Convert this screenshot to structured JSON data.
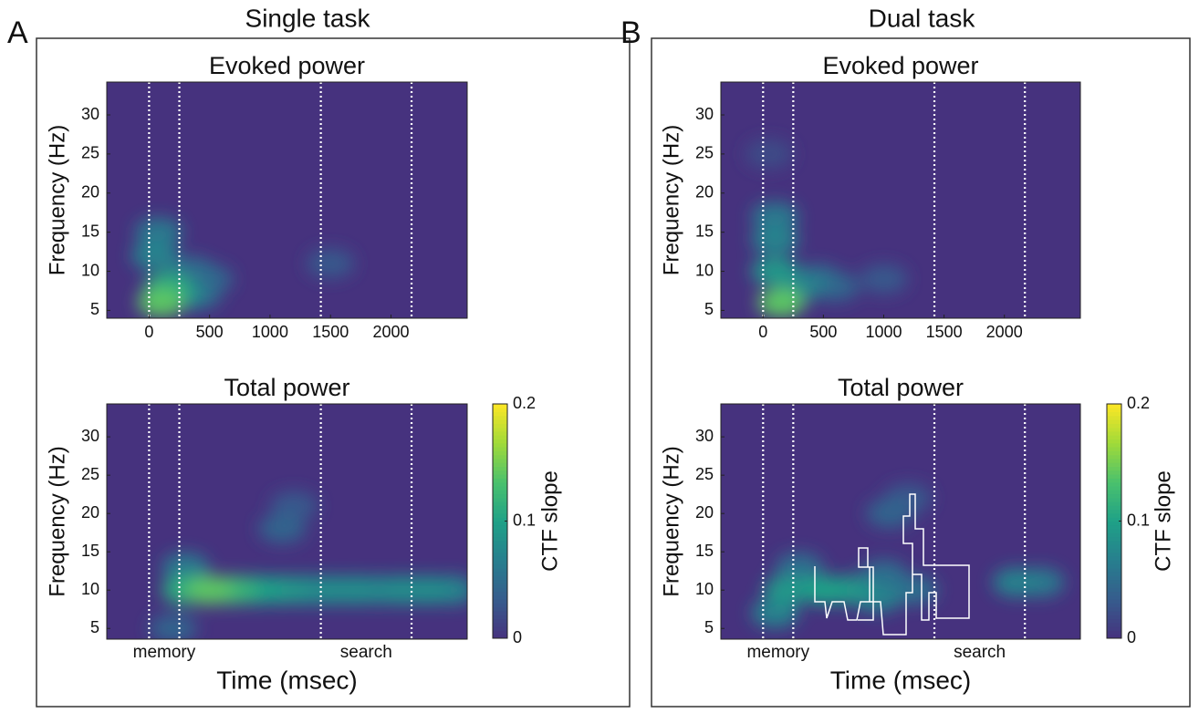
{
  "panels": [
    {
      "letter": "A",
      "title": "Single task"
    },
    {
      "letter": "B",
      "title": "Dual task"
    }
  ],
  "chart_data": [
    {
      "type": "heatmap",
      "title": "Evoked power",
      "ylabel": "Frequency (Hz)",
      "xlim": [
        -350,
        2630
      ],
      "ylim": [
        4,
        34.2
      ],
      "xticks": [
        0,
        500,
        1000,
        1500,
        2000
      ],
      "yticks": [
        5,
        10,
        15,
        20,
        25,
        30
      ],
      "events": [
        0,
        250,
        1420,
        2170
      ],
      "points": [
        {
          "x": 100,
          "y": 6,
          "value": 0.14
        },
        {
          "x": 150,
          "y": 8,
          "value": 0.11
        },
        {
          "x": 50,
          "y": 12,
          "value": 0.07
        },
        {
          "x": 80,
          "y": 15,
          "value": 0.06
        },
        {
          "x": 250,
          "y": 7,
          "value": 0.08
        },
        {
          "x": 350,
          "y": 10,
          "value": 0.05
        },
        {
          "x": 400,
          "y": 7,
          "value": 0.05
        },
        {
          "x": 500,
          "y": 9,
          "value": 0.04
        },
        {
          "x": 1500,
          "y": 11,
          "value": 0.03
        }
      ]
    },
    {
      "type": "heatmap",
      "title": "Total power",
      "ylabel": "Frequency (Hz)",
      "xlabel": "Time (msec)",
      "xlim": [
        -350,
        2630
      ],
      "ylim": [
        3.6,
        34.3
      ],
      "yticks": [
        5,
        10,
        15,
        20,
        25,
        30
      ],
      "events": [
        0,
        250,
        1420,
        2170
      ],
      "annotations": [
        "memory",
        "search"
      ],
      "clim": [
        0,
        0.2
      ],
      "cticks": [
        0,
        0.1,
        0.2
      ],
      "colorbar_label": "CTF slope",
      "points": [
        {
          "x": 300,
          "y": 10,
          "value": 0.11
        },
        {
          "x": 500,
          "y": 10,
          "value": 0.14
        },
        {
          "x": 700,
          "y": 10,
          "value": 0.12
        },
        {
          "x": 900,
          "y": 10,
          "value": 0.1
        },
        {
          "x": 1100,
          "y": 10,
          "value": 0.09
        },
        {
          "x": 1300,
          "y": 10,
          "value": 0.08
        },
        {
          "x": 1500,
          "y": 10,
          "value": 0.08
        },
        {
          "x": 1700,
          "y": 10,
          "value": 0.08
        },
        {
          "x": 1900,
          "y": 10,
          "value": 0.07
        },
        {
          "x": 2100,
          "y": 10,
          "value": 0.08
        },
        {
          "x": 2300,
          "y": 10,
          "value": 0.08
        },
        {
          "x": 2500,
          "y": 10,
          "value": 0.07
        },
        {
          "x": 300,
          "y": 13,
          "value": 0.06
        },
        {
          "x": 1100,
          "y": 18,
          "value": 0.04
        },
        {
          "x": 1200,
          "y": 21,
          "value": 0.03
        },
        {
          "x": 200,
          "y": 5,
          "value": 0.04
        }
      ]
    },
    {
      "type": "heatmap",
      "title": "Evoked power",
      "ylabel": "Frequency (Hz)",
      "xlim": [
        -350,
        2630
      ],
      "ylim": [
        4,
        34.2
      ],
      "xticks": [
        0,
        500,
        1000,
        1500,
        2000
      ],
      "yticks": [
        5,
        10,
        15,
        20,
        25,
        30
      ],
      "events": [
        0,
        250,
        1420,
        2170
      ],
      "points": [
        {
          "x": 150,
          "y": 6,
          "value": 0.14
        },
        {
          "x": 100,
          "y": 10,
          "value": 0.09
        },
        {
          "x": 100,
          "y": 14,
          "value": 0.07
        },
        {
          "x": 100,
          "y": 17,
          "value": 0.06
        },
        {
          "x": 300,
          "y": 8,
          "value": 0.07
        },
        {
          "x": 450,
          "y": 9,
          "value": 0.05
        },
        {
          "x": 600,
          "y": 8,
          "value": 0.04
        },
        {
          "x": 1000,
          "y": 9,
          "value": 0.03
        },
        {
          "x": 50,
          "y": 25,
          "value": 0.02
        }
      ]
    },
    {
      "type": "heatmap",
      "title": "Total power",
      "ylabel": "Frequency (Hz)",
      "xlabel": "Time (msec)",
      "xlim": [
        -350,
        2630
      ],
      "ylim": [
        3.6,
        34.3
      ],
      "yticks": [
        5,
        10,
        15,
        20,
        25,
        30
      ],
      "events": [
        0,
        250,
        1420,
        2170
      ],
      "annotations": [
        "memory",
        "search"
      ],
      "clim": [
        0,
        0.2
      ],
      "cticks": [
        0,
        0.1,
        0.2
      ],
      "colorbar_label": "CTF slope",
      "points": [
        {
          "x": 100,
          "y": 7,
          "value": 0.07
        },
        {
          "x": 200,
          "y": 10,
          "value": 0.09
        },
        {
          "x": 500,
          "y": 10,
          "value": 0.1
        },
        {
          "x": 700,
          "y": 10,
          "value": 0.09
        },
        {
          "x": 950,
          "y": 9,
          "value": 0.07
        },
        {
          "x": 1000,
          "y": 12,
          "value": 0.05
        },
        {
          "x": 1050,
          "y": 20,
          "value": 0.04
        },
        {
          "x": 1200,
          "y": 22,
          "value": 0.03
        },
        {
          "x": 2100,
          "y": 11,
          "value": 0.07
        },
        {
          "x": 2300,
          "y": 11,
          "value": 0.06
        },
        {
          "x": 1250,
          "y": 10,
          "value": 0.05
        },
        {
          "x": 300,
          "y": 13,
          "value": 0.05
        }
      ]
    }
  ]
}
